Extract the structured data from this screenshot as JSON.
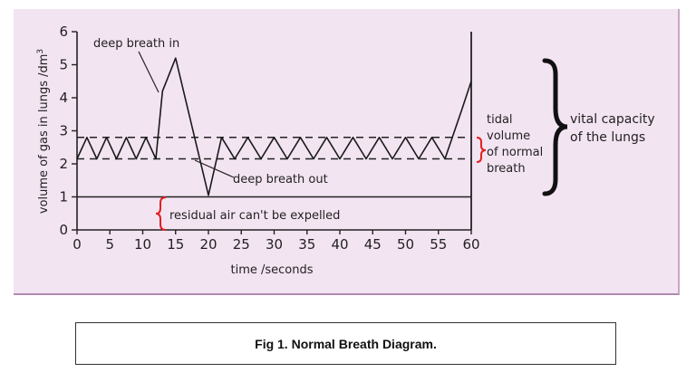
{
  "chart_data": {
    "type": "line",
    "xlabel": "time /seconds",
    "ylabel": "volume of gas in lungs /dm",
    "ylabel_sup": "3",
    "xlim": [
      0,
      60
    ],
    "ylim": [
      0,
      6
    ],
    "x_ticks": [
      0,
      5,
      10,
      15,
      20,
      25,
      30,
      35,
      40,
      45,
      50,
      55,
      60
    ],
    "x_tick_labels": [
      "0",
      "5",
      "10",
      "15",
      "20",
      "25",
      "30",
      "35",
      "40",
      "45",
      "50",
      "55",
      "60"
    ],
    "y_ticks": [
      0,
      1,
      2,
      3,
      4,
      5,
      6
    ],
    "y_tick_labels": [
      "0",
      "1",
      "2",
      "3",
      "4",
      "5",
      "6"
    ],
    "grid": false,
    "series": [
      {
        "x": [
          0,
          1.5,
          3,
          4.5,
          6,
          7.5,
          9,
          10.5,
          12,
          13,
          15,
          20,
          22,
          24,
          26,
          28,
          30,
          32,
          34,
          36,
          38,
          40,
          42,
          44,
          46,
          48,
          50,
          52,
          54,
          56,
          58.5,
          60
        ],
        "values": [
          2.15,
          2.8,
          2.15,
          2.8,
          2.15,
          2.8,
          2.15,
          2.8,
          2.15,
          4.2,
          5.2,
          1.05,
          2.8,
          2.15,
          2.8,
          2.15,
          2.8,
          2.15,
          2.8,
          2.15,
          2.8,
          2.15,
          2.8,
          2.15,
          2.8,
          2.15,
          2.8,
          2.15,
          2.8,
          2.15,
          3.6,
          4.5
        ]
      }
    ],
    "reference_lines": [
      {
        "y": 2.8,
        "style": "dashed"
      },
      {
        "y": 2.15,
        "style": "dashed"
      },
      {
        "y": 1.0,
        "style": "solid"
      }
    ],
    "annotations": {
      "deep_breath_in": "deep breath in",
      "deep_breath_out": "deep breath out",
      "residual": "residual air can't be expelled",
      "tidal_lines": [
        "tidal",
        "volume",
        "of normal",
        "breath"
      ],
      "vital_lines": [
        "vital capacity",
        "of the lungs"
      ]
    },
    "colors": {
      "line": "#1a1a1a",
      "residual_brace": "#e02020",
      "tidal_brace": "#e02020",
      "vital_brace": "#111111",
      "background": "#f3e4f2"
    }
  },
  "caption": "Fig 1. Normal Breath Diagram."
}
